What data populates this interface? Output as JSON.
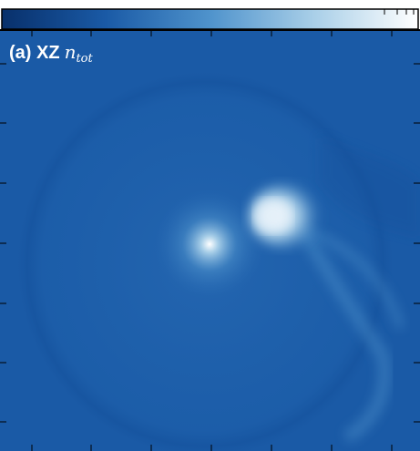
{
  "chart_data": {
    "type": "heatmap",
    "title": "(a) XZ",
    "title_symbol": "n",
    "title_subscript": "tot",
    "colormap": [
      "#08306b",
      "#1a5aa6",
      "#4f93cc",
      "#a9cfe8",
      "#ffffff"
    ]
  }
}
